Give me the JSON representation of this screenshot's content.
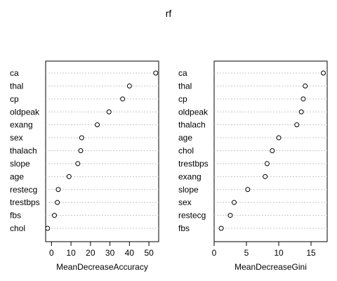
{
  "chart_data": {
    "title": "rf",
    "type": "scatter",
    "panels": [
      {
        "xlabel": "MeanDecreaseAccuracy",
        "xlim": [
          -3,
          55
        ],
        "xticks": [
          0,
          10,
          20,
          30,
          40,
          50
        ],
        "labels": [
          "ca",
          "thal",
          "cp",
          "oldpeak",
          "exang",
          "sex",
          "thalach",
          "slope",
          "age",
          "restecg",
          "trestbps",
          "fbs",
          "chol"
        ],
        "values": [
          53.5,
          40.0,
          36.5,
          29.5,
          23.5,
          15.5,
          15.0,
          13.5,
          9.0,
          3.5,
          3.0,
          1.5,
          -2.0
        ]
      },
      {
        "xlabel": "MeanDecreaseGini",
        "xlim": [
          0,
          17.5
        ],
        "xticks": [
          0,
          5,
          10,
          15
        ],
        "labels": [
          "ca",
          "thal",
          "cp",
          "oldpeak",
          "thalach",
          "age",
          "chol",
          "trestbps",
          "exang",
          "slope",
          "sex",
          "restecg",
          "fbs"
        ],
        "values": [
          16.9,
          14.1,
          13.8,
          13.5,
          12.8,
          10.0,
          9.0,
          8.2,
          7.9,
          5.2,
          3.1,
          2.5,
          1.1
        ]
      }
    ]
  }
}
